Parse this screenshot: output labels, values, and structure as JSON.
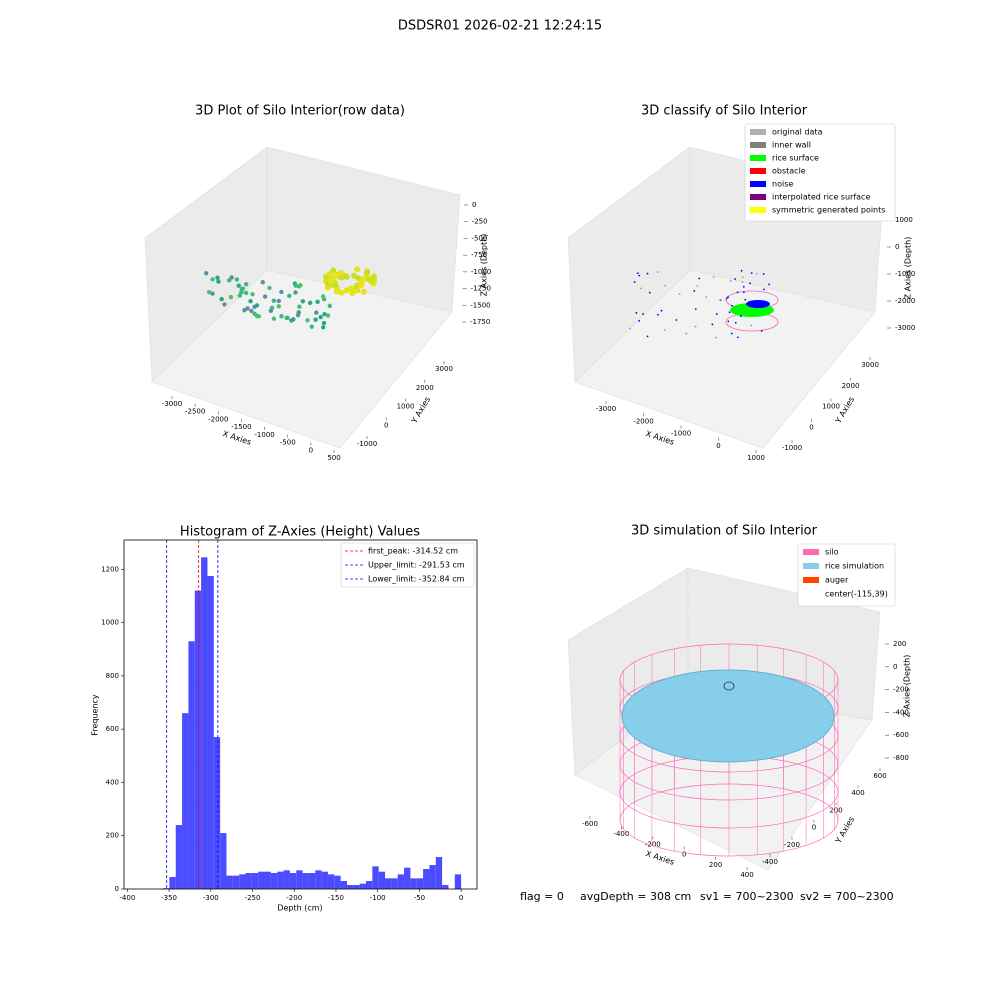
{
  "title": "DSDSR01 2026-02-21 12:24:15",
  "footer": [
    "flag = 0",
    "avgDepth = 308 cm",
    "sv1 = 700~2300",
    "sv2 = 700~2300"
  ],
  "chart_data": [
    {
      "type": "scatter3d",
      "title": "3D Plot of Silo Interior(row data)",
      "xlabel": "X Axies",
      "ylabel": "Y Axies",
      "zlabel": "Z Axies (Depth)",
      "xticks": [
        -3000,
        -2500,
        -2000,
        -1500,
        -1000,
        -500,
        0,
        500
      ],
      "yticks": [
        -1000,
        0,
        1000,
        2000,
        3000
      ],
      "zticks": [
        0,
        -250,
        -500,
        -750,
        -1000,
        -1250,
        -1500,
        -1750
      ]
    },
    {
      "type": "scatter3d",
      "title": "3D classify of Silo Interior",
      "xlabel": "X Axies",
      "ylabel": "Y Axies",
      "zlabel": "Z Axies (Depth)",
      "xticks": [
        -3000,
        -2000,
        -1000,
        0,
        1000
      ],
      "yticks": [
        -1000,
        0,
        1000,
        2000,
        3000
      ],
      "zticks": [
        1000,
        0,
        -1000,
        -2000,
        -3000
      ],
      "legend": [
        {
          "name": "original data",
          "color": "#b0b0b0"
        },
        {
          "name": "inner wall",
          "color": "#808080"
        },
        {
          "name": "rice surface",
          "color": "#00ff00"
        },
        {
          "name": "obstacle",
          "color": "#ff0000"
        },
        {
          "name": "noise",
          "color": "#0000ff"
        },
        {
          "name": "interpolated rice surface",
          "color": "#800080"
        },
        {
          "name": "symmetric generated points",
          "color": "#ffff00"
        }
      ]
    },
    {
      "type": "histogram",
      "title": "Histogram of Z-Axies (Height) Values",
      "xlabel": "Depth (cm)",
      "ylabel": "Frequency",
      "color": "#4b4bff",
      "bins": [
        -357.2,
        -349.6,
        -342.0,
        -334.4,
        -326.8,
        -319.2,
        -311.6,
        -304.0,
        -296.4,
        -288.8,
        -281.2,
        -273.6,
        -266.0,
        -258.4,
        -250.8,
        -243.2,
        -235.6,
        -228.0,
        -220.4,
        -212.8,
        -205.2,
        -197.6,
        -190.0,
        -182.4,
        -174.8,
        -167.2,
        -159.6,
        -152.0,
        -144.4,
        -136.8,
        -129.2,
        -121.6,
        -114.0,
        -106.4,
        -98.8,
        -91.2,
        -83.6,
        -76.0,
        -68.4,
        -60.8,
        -53.2,
        -45.6,
        -38.0,
        -30.4,
        -22.8,
        -15.2,
        -7.6,
        0
      ],
      "counts": [
        3,
        45,
        240,
        660,
        930,
        1120,
        1245,
        1175,
        570,
        210,
        50,
        50,
        55,
        60,
        60,
        65,
        65,
        60,
        65,
        70,
        60,
        70,
        60,
        60,
        70,
        65,
        55,
        50,
        30,
        15,
        15,
        20,
        30,
        85,
        65,
        40,
        40,
        55,
        80,
        40,
        40,
        75,
        90,
        120,
        15,
        0,
        55
      ],
      "xlim": [
        -404,
        19
      ],
      "ylim": [
        0,
        1310
      ],
      "xticks": [
        -400,
        -350,
        -300,
        -250,
        -200,
        -150,
        -100,
        -50,
        0
      ],
      "yticks": [
        0,
        200,
        400,
        600,
        800,
        1000,
        1200
      ],
      "vlines": [
        {
          "name": "first_peak: -314.52 cm",
          "value": -314.52,
          "color": "#ff0000"
        },
        {
          "name": "Upper_limit: -291.53 cm",
          "value": -291.53,
          "color": "#0000ff"
        },
        {
          "name": "Lower_limit: -352.84 cm",
          "value": -352.84,
          "color": "#0000ff"
        }
      ]
    },
    {
      "type": "surface3d",
      "title": "3D simulation of Silo Interior",
      "xlabel": "X Axies",
      "ylabel": "Y Axies",
      "zlabel": "Z Axies (Depth)",
      "xticks": [
        -600,
        -400,
        -200,
        0,
        200,
        400
      ],
      "yticks": [
        -400,
        -200,
        0,
        200,
        400,
        600
      ],
      "zticks": [
        200,
        0,
        -200,
        -400,
        -600,
        -800
      ],
      "legend": [
        {
          "name": "silo",
          "color": "#ff69b4"
        },
        {
          "name": "rice simulation",
          "color": "#87ceeb"
        },
        {
          "name": "auger",
          "color": "#ff4500"
        },
        {
          "name": "center(-115,39)"
        }
      ]
    }
  ]
}
